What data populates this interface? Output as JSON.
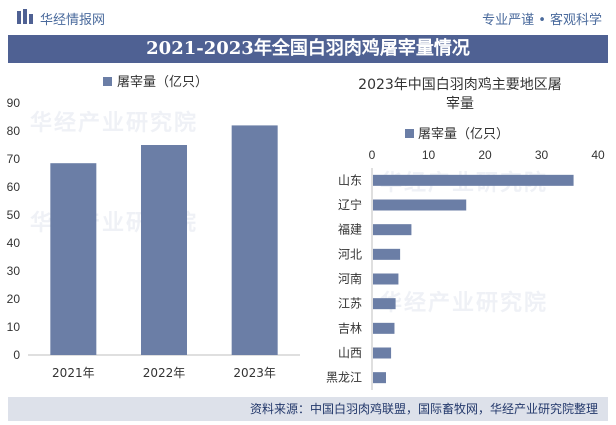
{
  "header": {
    "brand": "华经情报网",
    "tagline": "专业严谨 • 客观科学",
    "title": "2021-2023年全国白羽肉鸡屠宰量情况"
  },
  "watermark": "华经产业研究院",
  "footer": {
    "source": "资料来源：中国白羽肉鸡联盟，国际畜牧网，华经产业研究院整理"
  },
  "colors": {
    "bar": "#6b7ea6",
    "title_bar": "#4f6193",
    "footer_bar": "#dde1ea"
  },
  "chart_data": [
    {
      "type": "bar",
      "orientation": "vertical",
      "title": "",
      "categories": [
        "2021年",
        "2022年",
        "2023年"
      ],
      "series": [
        {
          "name": "屠宰量（亿只）",
          "values": [
            68.5,
            75,
            82
          ]
        }
      ],
      "ylim": [
        0,
        90
      ],
      "yticks": [
        0,
        10,
        20,
        30,
        40,
        50,
        60,
        70,
        80,
        90
      ],
      "legend": "top-left",
      "grid": false
    },
    {
      "type": "bar",
      "orientation": "horizontal",
      "title": "2023年中国白羽肉鸡主要地区屠宰量",
      "categories": [
        "山东",
        "辽宁",
        "福建",
        "河北",
        "河南",
        "江苏",
        "吉林",
        "山西",
        "黑龙江"
      ],
      "series": [
        {
          "name": "屠宰量（亿只）",
          "values": [
            35.5,
            16.5,
            6.8,
            4.8,
            4.5,
            4.0,
            3.8,
            3.2,
            2.3
          ]
        }
      ],
      "xlim": [
        0,
        40
      ],
      "xticks": [
        0,
        10,
        20,
        30,
        40
      ],
      "legend": "top",
      "grid": false
    }
  ]
}
